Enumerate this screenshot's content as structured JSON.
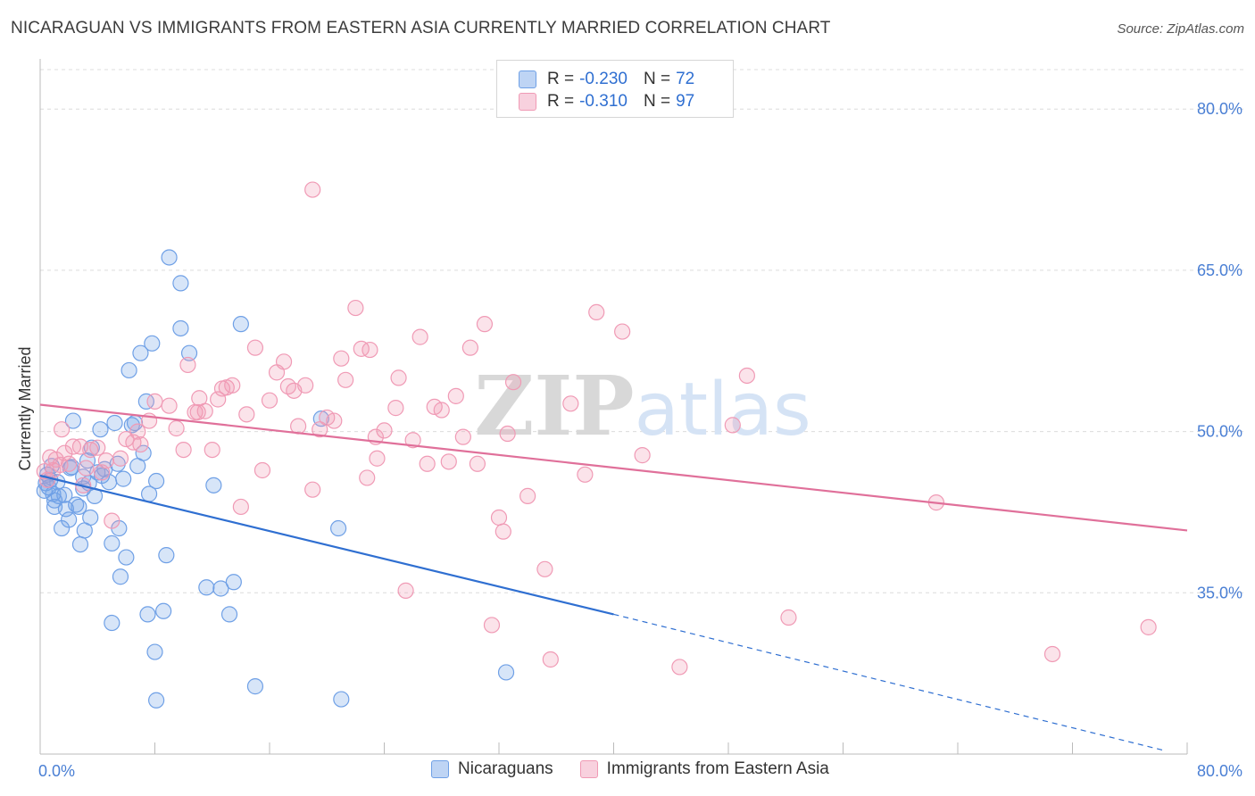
{
  "title": "NICARAGUAN VS IMMIGRANTS FROM EASTERN ASIA CURRENTLY MARRIED CORRELATION CHART",
  "source": "Source: ZipAtlas.com",
  "watermark": "ZIPatlas",
  "legend": {
    "rows": [
      {
        "r_label": "R =",
        "r_value": "-0.230",
        "n_label": "N =",
        "n_value": "72",
        "color": "#6fa0e6"
      },
      {
        "r_label": "R =",
        "r_value": "-0.310",
        "n_label": "N =",
        "n_value": "97",
        "color": "#f09ab5"
      }
    ]
  },
  "bottom_legend": [
    {
      "label": "Nicaraguans",
      "color": "#6fa0e6"
    },
    {
      "label": "Immigrants from Eastern Asia",
      "color": "#f09ab5"
    }
  ],
  "chart_data": {
    "type": "scatter",
    "title": "NICARAGUAN VS IMMIGRANTS FROM EASTERN ASIA CURRENTLY MARRIED CORRELATION CHART",
    "xlabel": "",
    "ylabel": "Currently Married",
    "xlim": [
      0,
      80
    ],
    "ylim": [
      20,
      85
    ],
    "x_tick_labels": [
      "0.0%",
      "80.0%"
    ],
    "y_ticks": [
      35,
      50,
      65,
      80
    ],
    "y_tick_labels": [
      "35.0%",
      "50.0%",
      "65.0%",
      "80.0%"
    ],
    "grid": true,
    "legend_position": "top-center",
    "series": [
      {
        "name": "Nicaraguans",
        "color": "#6fa0e6",
        "line_color": "#2f6fd1",
        "trend": {
          "x_start": 0,
          "y_start": 45.9,
          "x_solid_end": 40,
          "y_solid_end": 33.0,
          "x_end": 78.5,
          "y_end": 20.3
        },
        "points": [
          [
            0.3,
            44.5
          ],
          [
            0.4,
            45.2
          ],
          [
            0.5,
            46.0
          ],
          [
            0.6,
            44.8
          ],
          [
            0.7,
            45.5
          ],
          [
            0.8,
            46.8
          ],
          [
            0.9,
            44.2
          ],
          [
            1.0,
            43.0
          ],
          [
            1.2,
            45.3
          ],
          [
            1.3,
            44.0
          ],
          [
            1.5,
            41.0
          ],
          [
            1.7,
            44.1
          ],
          [
            1.8,
            42.8
          ],
          [
            2.0,
            41.8
          ],
          [
            2.2,
            46.7
          ],
          [
            2.3,
            51.0
          ],
          [
            2.5,
            43.2
          ],
          [
            2.7,
            43.0
          ],
          [
            2.8,
            39.5
          ],
          [
            3.0,
            45.8
          ],
          [
            3.1,
            40.8
          ],
          [
            3.3,
            47.3
          ],
          [
            3.4,
            45.2
          ],
          [
            3.5,
            42.0
          ],
          [
            3.6,
            48.5
          ],
          [
            3.8,
            44.0
          ],
          [
            4.0,
            46.2
          ],
          [
            4.2,
            50.2
          ],
          [
            4.3,
            45.9
          ],
          [
            4.5,
            46.5
          ],
          [
            4.8,
            45.3
          ],
          [
            5.0,
            39.6
          ],
          [
            5.2,
            50.8
          ],
          [
            5.4,
            47.0
          ],
          [
            5.5,
            41.0
          ],
          [
            5.6,
            36.5
          ],
          [
            5.8,
            45.6
          ],
          [
            6.0,
            38.3
          ],
          [
            6.2,
            55.7
          ],
          [
            6.4,
            50.6
          ],
          [
            6.6,
            50.8
          ],
          [
            6.8,
            46.8
          ],
          [
            7.0,
            57.3
          ],
          [
            7.2,
            48.0
          ],
          [
            7.4,
            52.8
          ],
          [
            7.6,
            44.2
          ],
          [
            7.8,
            58.2
          ],
          [
            8.0,
            29.5
          ],
          [
            8.1,
            25.0
          ],
          [
            8.6,
            33.3
          ],
          [
            8.8,
            38.5
          ],
          [
            9.8,
            59.6
          ],
          [
            10.4,
            57.3
          ],
          [
            11.6,
            35.5
          ],
          [
            12.1,
            45.0
          ],
          [
            12.6,
            35.4
          ],
          [
            13.2,
            33.0
          ],
          [
            13.5,
            36.0
          ],
          [
            14.0,
            60.0
          ],
          [
            15.0,
            26.3
          ],
          [
            19.6,
            51.2
          ],
          [
            20.8,
            41.0
          ],
          [
            21.0,
            25.1
          ],
          [
            32.5,
            27.6
          ],
          [
            9.8,
            63.8
          ],
          [
            9.0,
            66.2
          ],
          [
            8.1,
            45.4
          ],
          [
            5.0,
            32.2
          ],
          [
            7.5,
            33.0
          ],
          [
            1.0,
            43.6
          ],
          [
            2.1,
            46.6
          ],
          [
            3.0,
            44.7
          ]
        ]
      },
      {
        "name": "Immigrants from Eastern Asia",
        "color": "#f09ab5",
        "line_color": "#e0709a",
        "trend": {
          "x_start": 0,
          "y_start": 52.5,
          "x_end": 80,
          "y_end": 40.8
        },
        "points": [
          [
            0.3,
            46.3
          ],
          [
            0.5,
            45.5
          ],
          [
            0.7,
            47.6
          ],
          [
            0.9,
            46.4
          ],
          [
            1.1,
            47.4
          ],
          [
            1.4,
            46.9
          ],
          [
            1.7,
            48.0
          ],
          [
            2.0,
            47.0
          ],
          [
            2.3,
            48.6
          ],
          [
            2.8,
            48.6
          ],
          [
            3.0,
            45.0
          ],
          [
            3.5,
            48.3
          ],
          [
            4.0,
            48.5
          ],
          [
            4.3,
            46.2
          ],
          [
            4.6,
            47.3
          ],
          [
            5.0,
            41.7
          ],
          [
            5.6,
            47.5
          ],
          [
            6.0,
            49.3
          ],
          [
            6.5,
            49.0
          ],
          [
            6.8,
            50.0
          ],
          [
            7.0,
            48.8
          ],
          [
            7.6,
            51.0
          ],
          [
            8.0,
            52.8
          ],
          [
            9.0,
            52.4
          ],
          [
            9.5,
            50.3
          ],
          [
            10.0,
            48.3
          ],
          [
            10.3,
            56.2
          ],
          [
            10.8,
            51.8
          ],
          [
            11.1,
            53.1
          ],
          [
            11.5,
            51.9
          ],
          [
            12.0,
            48.3
          ],
          [
            12.4,
            53.0
          ],
          [
            12.7,
            54.0
          ],
          [
            13.0,
            54.1
          ],
          [
            13.4,
            54.3
          ],
          [
            14.0,
            43.0
          ],
          [
            14.4,
            51.6
          ],
          [
            15.0,
            57.8
          ],
          [
            15.5,
            46.4
          ],
          [
            16.0,
            52.9
          ],
          [
            16.5,
            55.5
          ],
          [
            17.0,
            56.5
          ],
          [
            17.3,
            54.2
          ],
          [
            17.7,
            53.8
          ],
          [
            18.0,
            50.5
          ],
          [
            18.5,
            54.3
          ],
          [
            19.0,
            44.6
          ],
          [
            19.5,
            50.2
          ],
          [
            20.0,
            51.3
          ],
          [
            20.5,
            51.0
          ],
          [
            21.0,
            56.8
          ],
          [
            21.3,
            54.8
          ],
          [
            22.0,
            61.5
          ],
          [
            22.4,
            57.7
          ],
          [
            22.8,
            45.7
          ],
          [
            23.0,
            57.6
          ],
          [
            23.5,
            47.5
          ],
          [
            24.0,
            50.1
          ],
          [
            24.8,
            52.2
          ],
          [
            25.0,
            55.0
          ],
          [
            25.5,
            35.2
          ],
          [
            26.0,
            49.2
          ],
          [
            26.5,
            58.8
          ],
          [
            27.0,
            47.0
          ],
          [
            27.5,
            52.3
          ],
          [
            28.0,
            52.0
          ],
          [
            28.5,
            47.2
          ],
          [
            29.0,
            53.3
          ],
          [
            29.5,
            49.5
          ],
          [
            30.0,
            57.8
          ],
          [
            30.5,
            47.0
          ],
          [
            31.0,
            60.0
          ],
          [
            31.5,
            32.0
          ],
          [
            32.0,
            42.0
          ],
          [
            32.3,
            40.7
          ],
          [
            32.6,
            49.8
          ],
          [
            33.0,
            54.6
          ],
          [
            34.0,
            44.0
          ],
          [
            35.2,
            37.2
          ],
          [
            35.6,
            28.8
          ],
          [
            37.0,
            52.6
          ],
          [
            38.0,
            46.0
          ],
          [
            38.8,
            61.1
          ],
          [
            40.6,
            59.3
          ],
          [
            42.0,
            47.8
          ],
          [
            44.6,
            28.1
          ],
          [
            48.3,
            50.6
          ],
          [
            49.3,
            55.2
          ],
          [
            52.2,
            32.7
          ],
          [
            62.5,
            43.4
          ],
          [
            70.6,
            29.3
          ],
          [
            77.3,
            31.8
          ],
          [
            19.0,
            72.5
          ],
          [
            23.4,
            49.5
          ],
          [
            11.0,
            51.8
          ],
          [
            3.2,
            46.6
          ],
          [
            1.5,
            50.2
          ]
        ]
      }
    ]
  }
}
